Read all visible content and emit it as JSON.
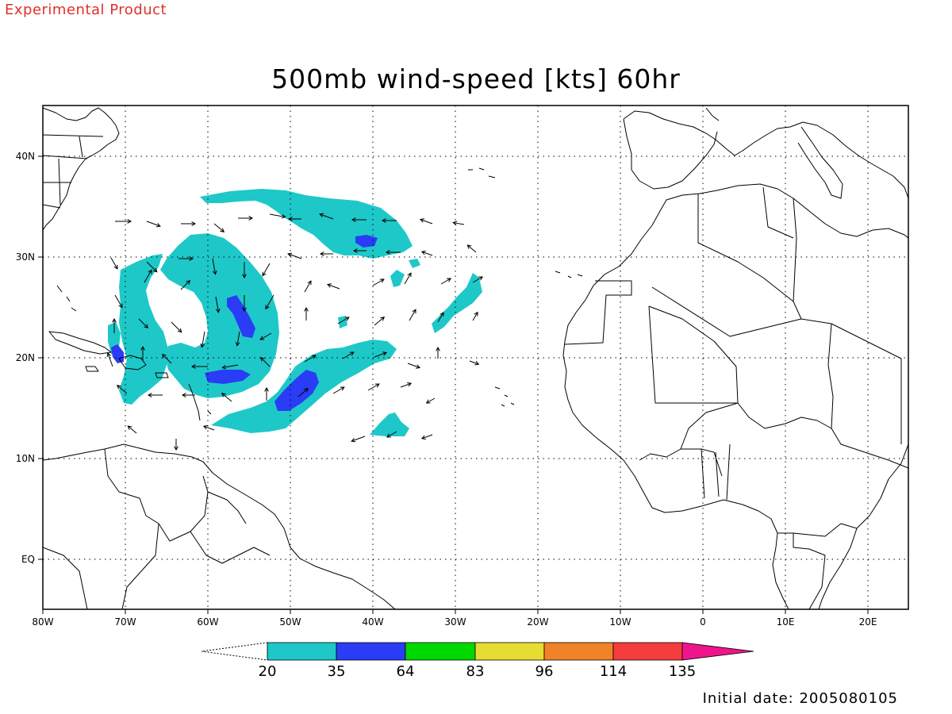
{
  "header": {
    "product_label": "Experimental Product",
    "title": "500mb wind-speed [kts] 60hr"
  },
  "map": {
    "lon_labels": [
      "80W",
      "70W",
      "60W",
      "50W",
      "40W",
      "30W",
      "20W",
      "10W",
      "0",
      "10E",
      "20E"
    ],
    "lat_labels": [
      "40N",
      "30N",
      "20N",
      "10N",
      "EQ"
    ],
    "colors": {
      "land_outline": "#000000",
      "grid": "#000000",
      "arrow": "#000000"
    }
  },
  "legend": {
    "values": [
      "20",
      "35",
      "64",
      "83",
      "96",
      "114",
      "135"
    ],
    "colors": [
      "#1ec8c8",
      "#2a3cf5",
      "#00d800",
      "#e6dc32",
      "#f08228",
      "#f53c3c",
      "#f0148c"
    ]
  },
  "footer": {
    "initial_date": "Initial date: 2005080105"
  }
}
